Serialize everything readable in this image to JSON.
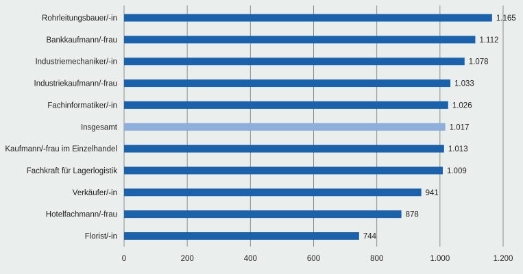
{
  "chart_data": {
    "type": "bar",
    "orientation": "horizontal",
    "categories": [
      "Rohrleitungsbauer/-in",
      "Bankkaufmann/-frau",
      "Industriemechaniker/-in",
      "Industriekaufmann/-frau",
      "Fachinformatiker/-in",
      "Insgesamt",
      "Kaufmann/-frau im Einzelhandel",
      "Fachkraft für Lagerlogistik",
      "Verkäufer/-in",
      "Hotelfachmann/-frau",
      "Florist/-in"
    ],
    "values": [
      1165,
      1112,
      1078,
      1033,
      1026,
      1017,
      1013,
      1009,
      941,
      878,
      744
    ],
    "value_labels": [
      "1.165",
      "1.112",
      "1.078",
      "1.033",
      "1.026",
      "1.017",
      "1.013",
      "1.009",
      "941",
      "878",
      "744"
    ],
    "highlight_index": 5,
    "xlim": [
      0,
      1200
    ],
    "ticks": [
      0,
      200,
      400,
      600,
      800,
      1000,
      1200
    ],
    "tick_labels": [
      "0",
      "200",
      "400",
      "600",
      "800",
      "1.000",
      "1.200"
    ],
    "grid": true,
    "title": "",
    "xlabel": "",
    "ylabel": "",
    "colors": {
      "bar": "#1b62ad",
      "highlight": "#8eaedb",
      "grid": "#8a8f8c",
      "background": "#eaeeec"
    }
  }
}
